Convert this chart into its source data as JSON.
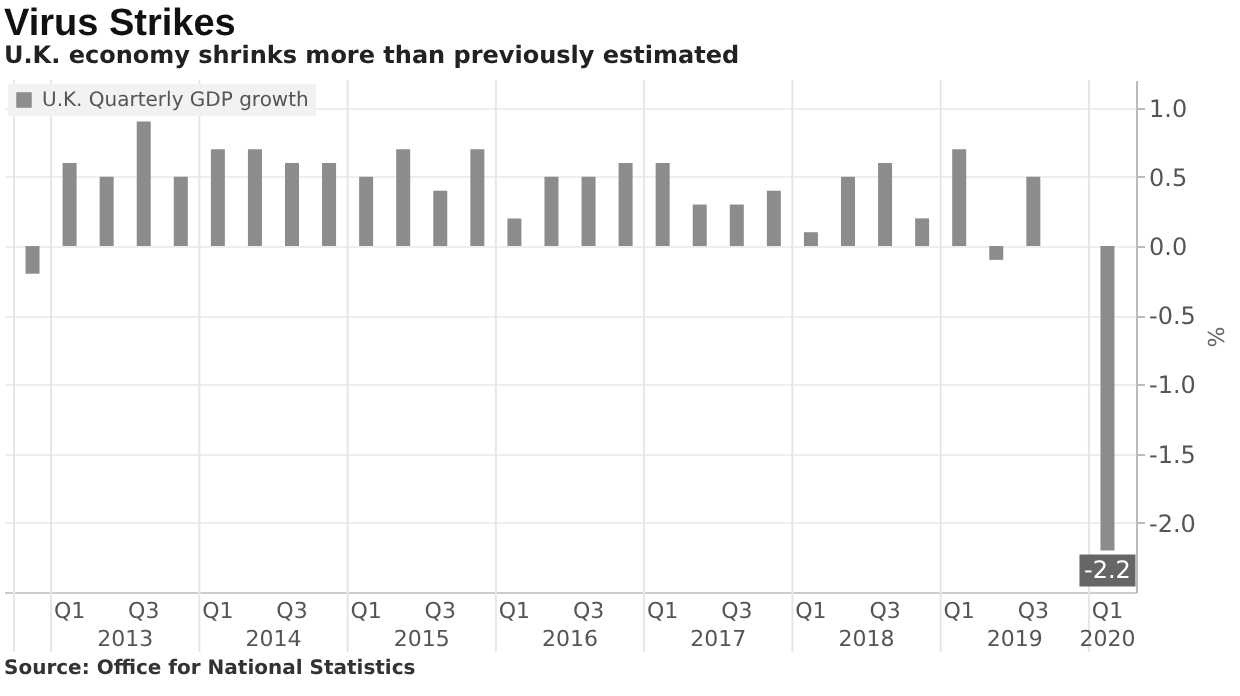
{
  "chart_data": {
    "type": "bar",
    "title": "Virus Strikes",
    "subtitle": "U.K. economy shrinks more than previously estimated",
    "ylabel": "%",
    "categories": [
      null,
      "Q1",
      null,
      "Q3",
      null,
      "Q1",
      null,
      "Q3",
      null,
      "Q1",
      null,
      "Q3",
      null,
      "Q1",
      null,
      "Q3",
      null,
      "Q1",
      null,
      "Q3",
      null,
      "Q1",
      null,
      "Q3",
      null,
      "Q1",
      null,
      "Q3",
      null,
      "Q1"
    ],
    "series": [
      {
        "name": "U.K. Quarterly GDP growth",
        "color": "#8c8c8c",
        "values": [
          -0.2,
          0.6,
          0.5,
          0.9,
          0.5,
          0.7,
          0.7,
          0.6,
          0.6,
          0.5,
          0.7,
          0.4,
          0.7,
          0.2,
          0.5,
          0.5,
          0.6,
          0.6,
          0.3,
          0.3,
          0.4,
          0.1,
          0.5,
          0.6,
          0.2,
          0.7,
          -0.1,
          0.5,
          0.0,
          -2.2
        ],
        "value_labels": [
          null,
          null,
          null,
          null,
          null,
          null,
          null,
          null,
          null,
          null,
          null,
          null,
          null,
          null,
          null,
          null,
          null,
          null,
          null,
          null,
          null,
          null,
          null,
          null,
          null,
          null,
          null,
          null,
          null,
          "-2.2"
        ]
      }
    ],
    "ylim": [
      -2.5,
      1.2
    ],
    "yticks": [
      {
        "value": -2,
        "label": "-2.0"
      },
      {
        "value": -1.5,
        "label": "-1.5"
      },
      {
        "value": -1,
        "label": "-1.0"
      },
      {
        "value": -0.5,
        "label": "-0.5"
      },
      {
        "value": 0,
        "label": "0.0"
      },
      {
        "value": 0.5,
        "label": "0.5"
      },
      {
        "value": 1,
        "label": "1.0"
      }
    ],
    "grid": true,
    "legend": "top left",
    "annotations": [
      "2013",
      "2014",
      "2015",
      "2016",
      "2017",
      "2018",
      "2019",
      "2020",
      "Source: Office for National Statistics"
    ]
  }
}
